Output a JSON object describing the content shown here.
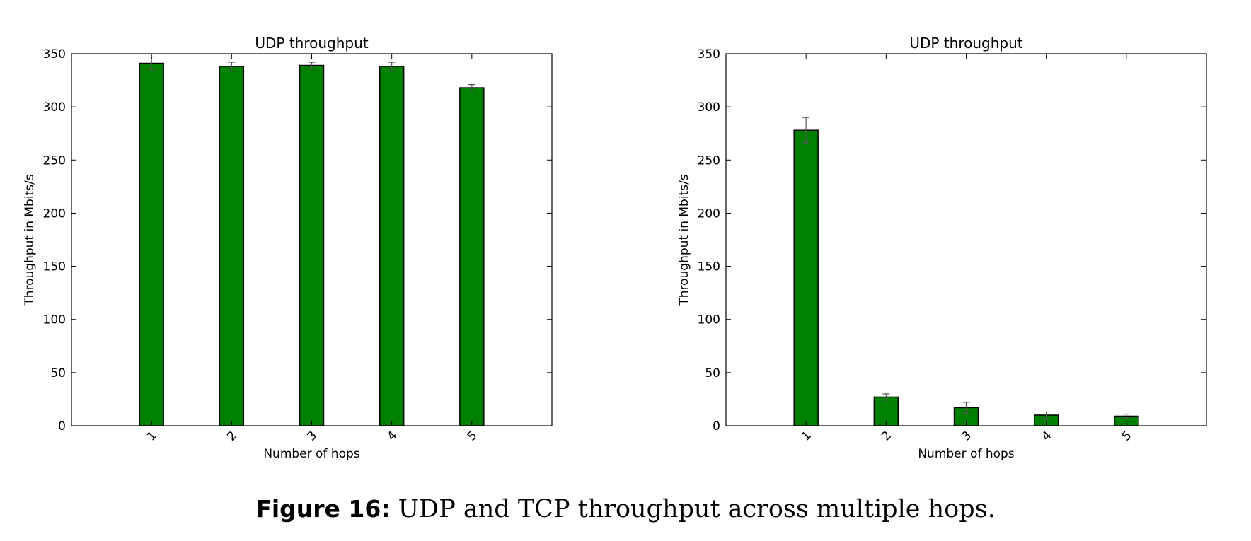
{
  "chart_data": [
    {
      "type": "bar",
      "title": "UDP throughput",
      "xlabel": "Number of hops",
      "ylabel": "Throughput in Mbits/s",
      "categories": [
        "1",
        "2",
        "3",
        "4",
        "5"
      ],
      "values": [
        341,
        338,
        339,
        338,
        318
      ],
      "error": [
        6,
        4,
        3,
        4,
        3
      ],
      "ylim": [
        0,
        350
      ],
      "yticks": [
        0,
        50,
        100,
        150,
        200,
        250,
        300,
        350
      ],
      "xlim": [
        0,
        6
      ],
      "bar_color": "#008000",
      "error_color": "#555555",
      "grid": false,
      "tick_label_rotation": "45"
    },
    {
      "type": "bar",
      "title": "UDP throughput",
      "xlabel": "Number of hops",
      "ylabel": "Throughput in Mbits/s",
      "categories": [
        "1",
        "2",
        "3",
        "4",
        "5"
      ],
      "values": [
        278,
        27,
        17,
        10,
        9
      ],
      "error": [
        12,
        3,
        5,
        3,
        2
      ],
      "ylim": [
        0,
        350
      ],
      "yticks": [
        0,
        50,
        100,
        150,
        200,
        250,
        300,
        350
      ],
      "xlim": [
        0,
        6
      ],
      "bar_color": "#008000",
      "error_color": "#555555",
      "grid": false,
      "tick_label_rotation": "45"
    }
  ],
  "caption": {
    "label": "Figure 16:",
    "text": "UDP and TCP throughput across multiple hops."
  }
}
